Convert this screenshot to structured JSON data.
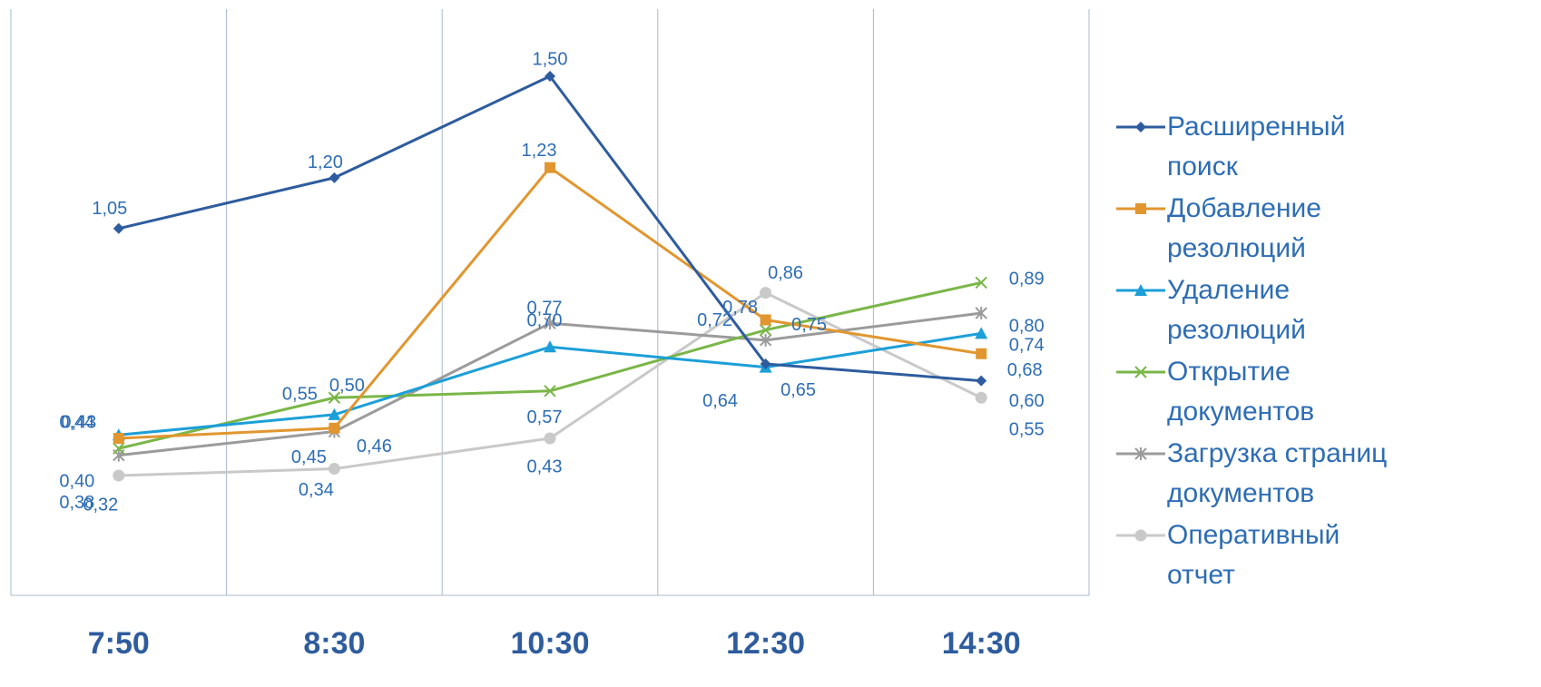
{
  "chart_data": {
    "type": "line",
    "categories": [
      "7:50",
      "8:30",
      "10:30",
      "12:30",
      "14:30"
    ],
    "ylim": [
      0,
      1.7
    ],
    "grid": "vertical",
    "legend_position": "right",
    "series": [
      {
        "name": "Расширенный поиск",
        "color": "#2E5C9E",
        "marker": "diamond",
        "values": [
          1.05,
          1.2,
          1.5,
          0.65,
          0.6
        ],
        "labels": [
          "1,05",
          "1,20",
          "1,50",
          "0,65",
          "0,60"
        ]
      },
      {
        "name": "Добавление резолюций",
        "color": "#E1962F",
        "marker": "square",
        "values": [
          0.43,
          0.46,
          1.23,
          0.78,
          0.68
        ],
        "labels": [
          "0,43",
          "0,46",
          "1,23",
          "0,78",
          "0,68"
        ]
      },
      {
        "name": "Удаление резолюций",
        "color": "#1C9FD8",
        "marker": "triangle",
        "values": [
          0.44,
          0.5,
          0.7,
          0.64,
          0.74
        ],
        "labels": [
          "0,44",
          "0,50",
          "0,70",
          "0,64",
          "0,74"
        ]
      },
      {
        "name": "Открытие документов",
        "color": "#7AB648",
        "marker": "x",
        "values": [
          0.4,
          0.55,
          0.57,
          0.75,
          0.89
        ],
        "labels": [
          "0,40",
          "0,55",
          "0,57",
          "0,75",
          "0,89"
        ]
      },
      {
        "name": "Загрузка страниц документов",
        "color": "#9B9B9B",
        "marker": "star",
        "values": [
          0.38,
          0.45,
          0.77,
          0.72,
          0.8
        ],
        "labels": [
          "0,38",
          "0,45",
          "0,77",
          "0,72",
          "0,80"
        ]
      },
      {
        "name": "Оперативный отчет",
        "color": "#C9C9C9",
        "marker": "circle",
        "values": [
          0.32,
          0.34,
          0.43,
          0.86,
          0.55
        ],
        "labels": [
          "0,32",
          "0,34",
          "0,43",
          "0,86",
          "0,55"
        ]
      }
    ]
  },
  "legend": {
    "items": [
      {
        "line1": "Расширенный",
        "line2": "поиск"
      },
      {
        "line1": "Добавление",
        "line2": "резолюций"
      },
      {
        "line1": "Удаление",
        "line2": "резолюций"
      },
      {
        "line1": "Открытие",
        "line2": "документов"
      },
      {
        "line1": "Загрузка страниц",
        "line2": "документов"
      },
      {
        "line1": "Оперативный",
        "line2": "отчет"
      }
    ]
  },
  "style": {
    "grid_color": "#A9B8CE",
    "label_color": "#2E6DB4",
    "axis_label_color": "#2E5C9E"
  }
}
